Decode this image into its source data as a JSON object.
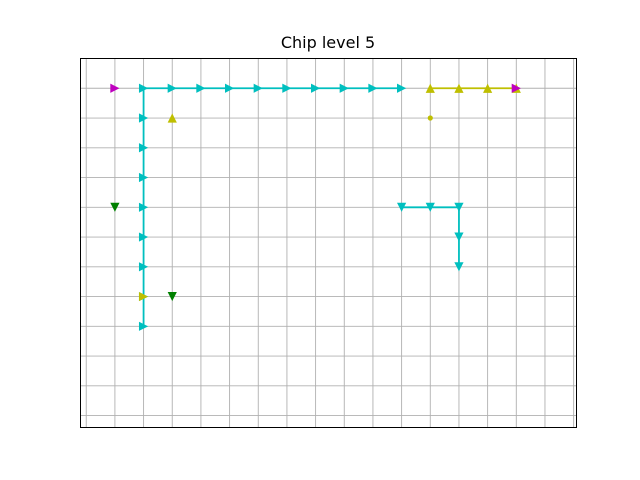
{
  "chart_data": {
    "type": "scatter",
    "title": "Chip level 5",
    "xlabel": "",
    "ylabel": "",
    "xlim": [
      -0.2,
      17.1
    ],
    "ylim": [
      -0.4,
      12.0
    ],
    "x_gridlines": [
      0,
      1,
      2,
      3,
      4,
      5,
      6,
      7,
      8,
      9,
      10,
      11,
      12,
      13,
      14,
      15,
      16,
      17
    ],
    "y_gridlines": [
      0,
      1,
      2,
      3,
      4,
      5,
      6,
      7,
      8,
      9,
      10,
      11
    ],
    "grid": true,
    "ticks_visible": false,
    "paths": [
      {
        "color": "#00bfbf",
        "marker": "right",
        "points": [
          [
            2,
            3
          ],
          [
            2,
            4
          ],
          [
            2,
            5
          ],
          [
            2,
            6
          ],
          [
            2,
            7
          ],
          [
            2,
            8
          ],
          [
            2,
            9
          ],
          [
            2,
            10
          ],
          [
            2,
            11
          ],
          [
            3,
            11
          ],
          [
            4,
            11
          ],
          [
            5,
            11
          ],
          [
            6,
            11
          ],
          [
            7,
            11
          ],
          [
            8,
            11
          ],
          [
            9,
            11
          ],
          [
            10,
            11
          ],
          [
            11,
            11
          ]
        ]
      },
      {
        "color": "#bfbf00",
        "marker": "up",
        "points": [
          [
            12,
            11
          ],
          [
            13,
            11
          ],
          [
            14,
            11
          ],
          [
            15,
            11
          ]
        ]
      },
      {
        "color": "#00bfbf",
        "marker": "down",
        "points": [
          [
            11,
            7
          ],
          [
            12,
            7
          ],
          [
            13,
            7
          ],
          [
            13,
            6
          ],
          [
            13,
            5
          ]
        ]
      }
    ],
    "markers": [
      {
        "color": "#bf00bf",
        "marker": "right",
        "x": 1,
        "y": 11
      },
      {
        "color": "#bf00bf",
        "marker": "right",
        "x": 15,
        "y": 11
      },
      {
        "color": "#bfbf00",
        "marker": "up",
        "x": 3,
        "y": 10
      },
      {
        "color": "#bfbf00",
        "marker": "dot",
        "x": 12,
        "y": 10
      },
      {
        "color": "#008000",
        "marker": "down",
        "x": 1,
        "y": 7
      },
      {
        "color": "#008000",
        "marker": "down",
        "x": 3,
        "y": 4
      },
      {
        "color": "#bfbf00",
        "marker": "right",
        "x": 2,
        "y": 4
      }
    ]
  }
}
